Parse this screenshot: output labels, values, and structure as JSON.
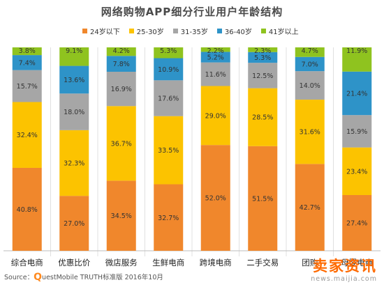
{
  "title": "网络购物APP细分行业用户年龄结构",
  "source": {
    "prefix": "Source：",
    "q": "Q",
    "text": "uestMobile TRUTH标准版 2016年10月"
  },
  "watermark": {
    "logo": "卖家资讯",
    "url": "news.maijia.com"
  },
  "colors": {
    "24岁以下": "#f0872c",
    "25-30岁": "#fcc300",
    "31-35岁": "#a6a6a6",
    "36-40岁": "#2e93c8",
    "41岁以上": "#8fc31f",
    "gridline": "#e0e0e0",
    "baseline": "#bdbdbd"
  },
  "chart_data": {
    "type": "bar",
    "stacked": true,
    "normalized": true,
    "title": "网络购物APP细分行业用户年龄结构",
    "xlabel": "",
    "ylabel": "",
    "legend_position": "top",
    "grid": true,
    "categories": [
      "综合电商",
      "优惠比价",
      "微店服务",
      "生鲜电商",
      "跨境电商",
      "二手交易",
      "团购",
      "母婴电商"
    ],
    "series": [
      {
        "name": "24岁以下",
        "values": [
          40.8,
          27.0,
          34.5,
          32.7,
          52.0,
          51.5,
          42.7,
          27.4
        ]
      },
      {
        "name": "25-30岁",
        "values": [
          32.4,
          32.3,
          36.7,
          33.5,
          29.0,
          28.5,
          31.6,
          23.4
        ]
      },
      {
        "name": "31-35岁",
        "values": [
          15.7,
          18.0,
          16.9,
          17.6,
          11.6,
          12.5,
          14.0,
          15.9
        ]
      },
      {
        "name": "36-40岁",
        "values": [
          7.4,
          13.6,
          7.8,
          10.9,
          5.2,
          5.3,
          7.0,
          21.4
        ]
      },
      {
        "name": "41岁以上",
        "values": [
          3.8,
          9.1,
          4.2,
          5.3,
          2.2,
          2.3,
          4.7,
          11.9
        ]
      }
    ],
    "label_format": "{v}%",
    "ylim": [
      0,
      100
    ]
  }
}
